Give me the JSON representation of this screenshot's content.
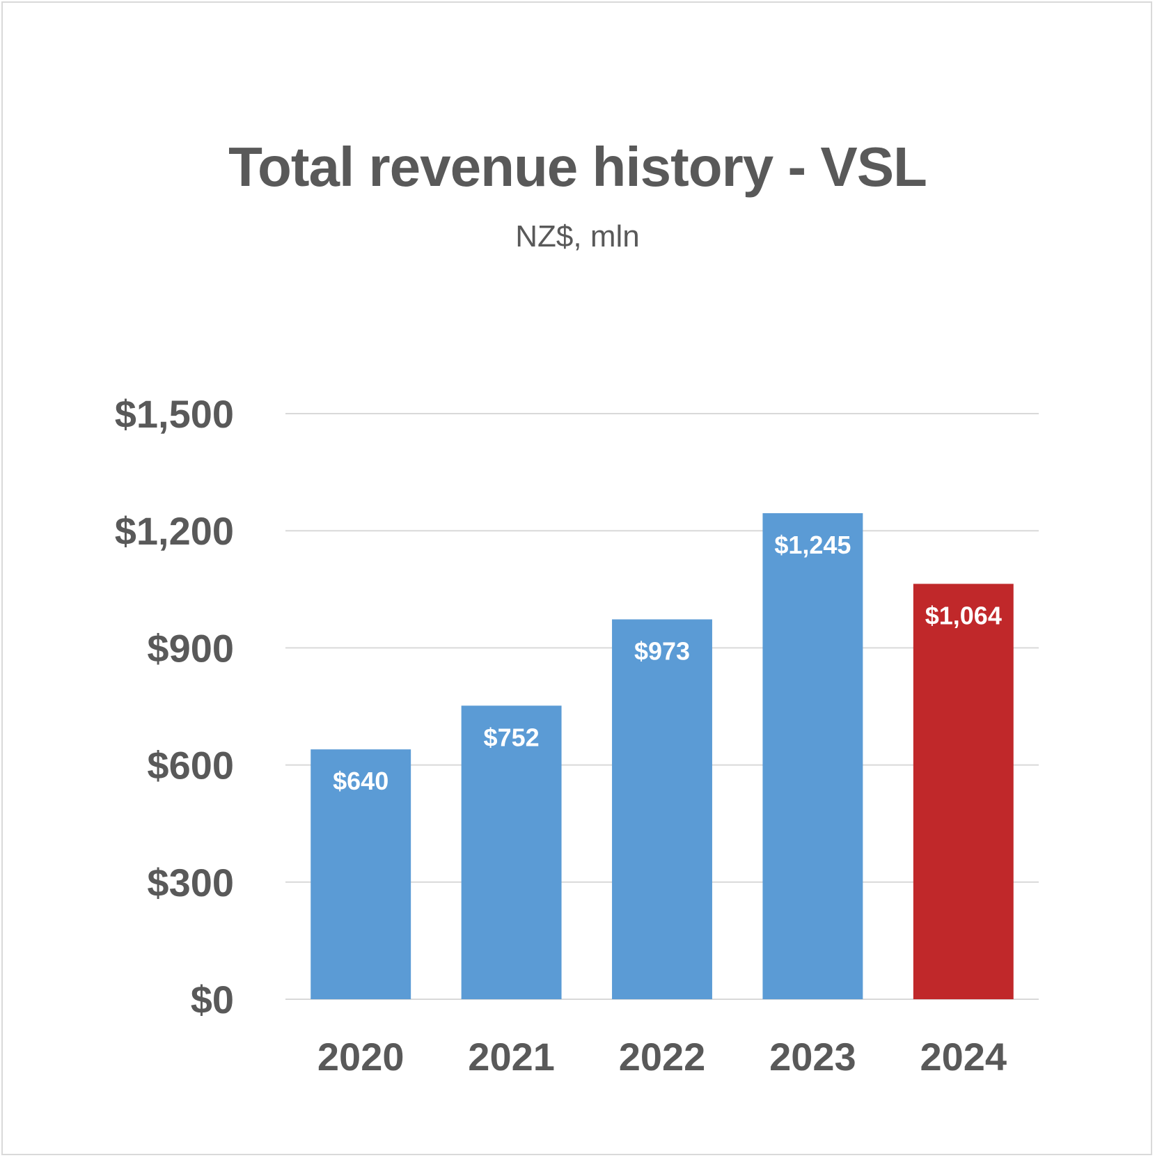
{
  "chart_data": {
    "type": "bar",
    "title": "Total revenue history - VSL",
    "subtitle": "NZ$, mln",
    "xlabel": "",
    "ylabel": "",
    "categories": [
      "2020",
      "2021",
      "2022",
      "2023",
      "2024"
    ],
    "values": [
      640,
      752,
      973,
      1245,
      1064
    ],
    "data_labels": [
      "$640",
      "$752",
      "$973",
      "$1,245",
      "$1,064"
    ],
    "ylim": [
      0,
      1500
    ],
    "yticks": [
      0,
      300,
      600,
      900,
      1200,
      1500
    ],
    "ytick_labels": [
      "$0",
      "$300",
      "$600",
      "$900",
      "$1,200",
      "$1,500"
    ],
    "grid": true,
    "legend": "none",
    "colors": {
      "default_bar": "#5b9bd5",
      "highlight_bar": "#c0282a",
      "highlight_category": "2024",
      "grid": "#d9d9d9",
      "text": "#595959",
      "data_label": "#ffffff"
    }
  }
}
